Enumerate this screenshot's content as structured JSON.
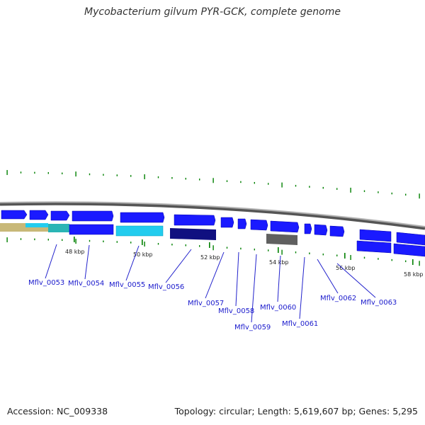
{
  "title": "Mycobacterium gilvum PYR-GCK, complete genome",
  "footer": {
    "accession": "Accession: NC_009338",
    "summary": "Topology: circular; Length: 5,619,607 bp; Genes: 5,295"
  },
  "colors": {
    "backbone": "#808080",
    "gene_forward": "#1a1aff",
    "cds_cyan": "#22ccee",
    "cds_teal": "#2ab5b5",
    "cds_navy": "#101080",
    "cds_grey": "#606060",
    "khaki": "#c8b878",
    "tick": "#008000",
    "label": "#1a1acc",
    "callout": "#2222cc"
  },
  "ticks": [
    "48 kbp",
    "50 kbp",
    "52 kbp",
    "54 kbp",
    "56 kbp",
    "58 kbp"
  ],
  "genes": [
    "Mflv_0053",
    "Mflv_0054",
    "Mflv_0055",
    "Mflv_0056",
    "Mflv_0057",
    "Mflv_0058",
    "Mflv_0059",
    "Mflv_0060",
    "Mflv_0061",
    "Mflv_0062",
    "Mflv_0063"
  ]
}
